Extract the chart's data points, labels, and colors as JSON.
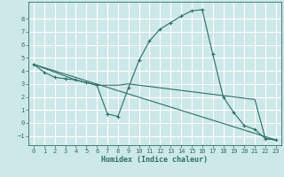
{
  "title": "",
  "xlabel": "Humidex (Indice chaleur)",
  "bg_color": "#cde8e8",
  "line_color": "#2e6e65",
  "grid_color": "#ffffff",
  "xlim": [
    -0.5,
    23.5
  ],
  "ylim": [
    -1.7,
    9.3
  ],
  "xticks": [
    0,
    1,
    2,
    3,
    4,
    5,
    6,
    7,
    8,
    9,
    10,
    11,
    12,
    13,
    14,
    15,
    16,
    17,
    18,
    19,
    20,
    21,
    22,
    23
  ],
  "yticks": [
    -1,
    0,
    1,
    2,
    3,
    4,
    5,
    6,
    7,
    8
  ],
  "series_main": {
    "x": [
      0,
      1,
      2,
      3,
      4,
      5,
      6,
      7,
      8,
      9,
      10,
      11,
      12,
      13,
      14,
      15,
      16,
      17,
      18,
      19,
      20,
      21,
      22,
      23
    ],
    "y": [
      4.5,
      3.9,
      3.5,
      3.4,
      3.3,
      3.1,
      2.9,
      0.7,
      0.5,
      2.7,
      4.8,
      6.3,
      7.2,
      7.7,
      8.2,
      8.6,
      8.7,
      5.3,
      2.0,
      0.8,
      -0.2,
      -0.5,
      -1.2,
      -1.3
    ]
  },
  "series_flat": {
    "x": [
      0,
      4,
      5,
      6,
      7,
      8,
      9,
      10,
      16,
      17,
      18,
      19,
      20,
      21,
      22,
      23
    ],
    "y": [
      4.5,
      3.3,
      3.1,
      2.9,
      2.9,
      2.9,
      3.0,
      2.9,
      2.3,
      2.2,
      2.1,
      2.0,
      1.9,
      1.8,
      -1.2,
      -1.3
    ]
  },
  "series_diag": {
    "x": [
      0,
      23
    ],
    "y": [
      4.5,
      -1.3
    ]
  }
}
